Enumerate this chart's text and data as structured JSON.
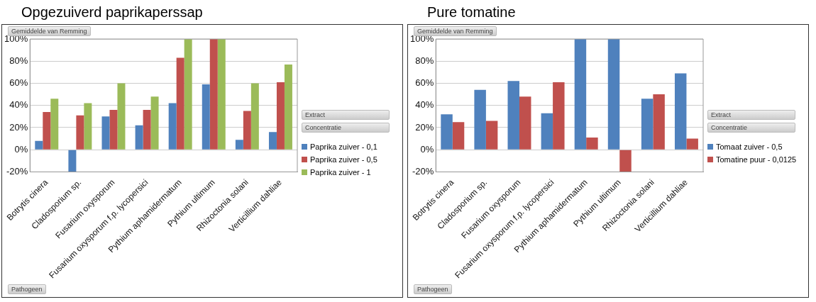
{
  "chart_data": [
    {
      "type": "bar",
      "title": "Opgezuiverd paprikaperssap",
      "categories": [
        "Botrytis cinera",
        "Cladosporium sp.",
        "Fusarium oxysporum",
        "Fusarium oxysporum f.p. lycopersici",
        "Pythium aphamidermatum",
        "Pythium ultimum",
        "Rhizoctonia solani",
        "Verticillium dahliae"
      ],
      "series": [
        {
          "name": "Paprika zuiver - 0,1",
          "color": "#4f81bd",
          "values": [
            8,
            -20,
            30,
            22,
            42,
            59,
            9,
            16
          ]
        },
        {
          "name": "Paprika zuiver - 0,5",
          "color": "#c0504d",
          "values": [
            34,
            31,
            36,
            36,
            83,
            100,
            35,
            61
          ]
        },
        {
          "name": "Paprika zuiver - 1",
          "color": "#9bbb59",
          "values": [
            46,
            42,
            60,
            48,
            100,
            100,
            60,
            77
          ]
        }
      ],
      "ylim": [
        -20,
        100
      ],
      "yticks": [
        {
          "value": -20,
          "label": "-20%"
        },
        {
          "value": 0,
          "label": "0%"
        },
        {
          "value": 20,
          "label": "20%"
        },
        {
          "value": 40,
          "label": "40%"
        },
        {
          "value": 60,
          "label": "60%"
        },
        {
          "value": 80,
          "label": "80%"
        },
        {
          "value": 100,
          "label": "100%"
        }
      ],
      "grid": "y",
      "legend": "right",
      "annotations": [
        "Gemiddelde van Remming",
        "Pathogeen",
        "Extract",
        "Concentratie"
      ]
    },
    {
      "type": "bar",
      "title": "Pure tomatine",
      "categories": [
        "Botrytis cinera",
        "Cladosporium sp.",
        "Fusarium oxysporum",
        "Fusarium oxysporum f.p. lycopersici",
        "Pythium aphamidermatum",
        "Pythium ultimum",
        "Rhizoctonia solani",
        "Verticillium dahliae"
      ],
      "series": [
        {
          "name": "Tomaat zuiver - 0,5",
          "color": "#4f81bd",
          "values": [
            32,
            54,
            62,
            33,
            100,
            100,
            46,
            69
          ]
        },
        {
          "name": "Tomatine puur - 0,0125",
          "color": "#c0504d",
          "values": [
            25,
            26,
            48,
            61,
            11,
            -20,
            50,
            10
          ]
        }
      ],
      "ylim": [
        -20,
        100
      ],
      "yticks": [
        {
          "value": -20,
          "label": "-20%"
        },
        {
          "value": 0,
          "label": "0%"
        },
        {
          "value": 20,
          "label": "20%"
        },
        {
          "value": 40,
          "label": "40%"
        },
        {
          "value": 60,
          "label": "60%"
        },
        {
          "value": 80,
          "label": "80%"
        },
        {
          "value": 100,
          "label": "100%"
        }
      ],
      "grid": "y",
      "legend": "right",
      "annotations": [
        "Gemiddelde van Remming",
        "Pathogeen",
        "Extract",
        "Concentratie"
      ]
    }
  ]
}
